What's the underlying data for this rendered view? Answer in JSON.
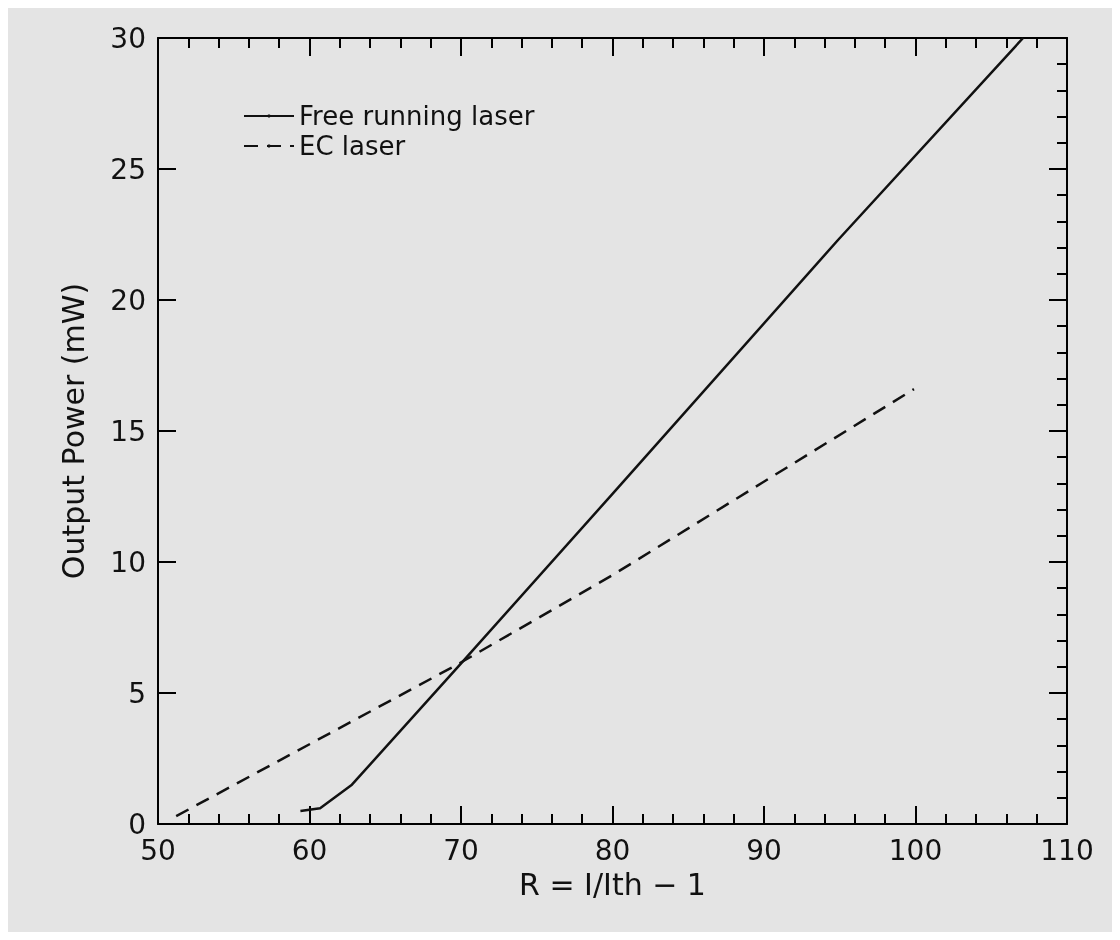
{
  "chart_data": {
    "type": "line",
    "xlabel": "R = I/Ith − 1",
    "ylabel": "Output Power (mW)",
    "xlim": [
      50,
      110
    ],
    "xticks": [
      50,
      60,
      70,
      80,
      90,
      100,
      110
    ],
    "ylim": [
      0,
      30
    ],
    "yticks": [
      0,
      5,
      10,
      15,
      20,
      25,
      30
    ],
    "grid": false,
    "legend": "top left",
    "marker": "none",
    "series": [
      {
        "name": "Free running laser",
        "color": "#111111",
        "line_style": "solid",
        "x": [
          59.4,
          60.7,
          62.8,
          69.8,
          80,
          94.9,
          107.1
        ],
        "values": [
          0.5,
          0.6,
          1.5,
          6.0,
          12.6,
          22.3,
          30
        ]
      },
      {
        "name": "EC laser",
        "color": "#111111",
        "line_style": "dashed",
        "x": [
          51.2,
          69.8,
          80,
          99.9
        ],
        "values": [
          0.3,
          6.1,
          9.5,
          16.6
        ]
      }
    ]
  }
}
